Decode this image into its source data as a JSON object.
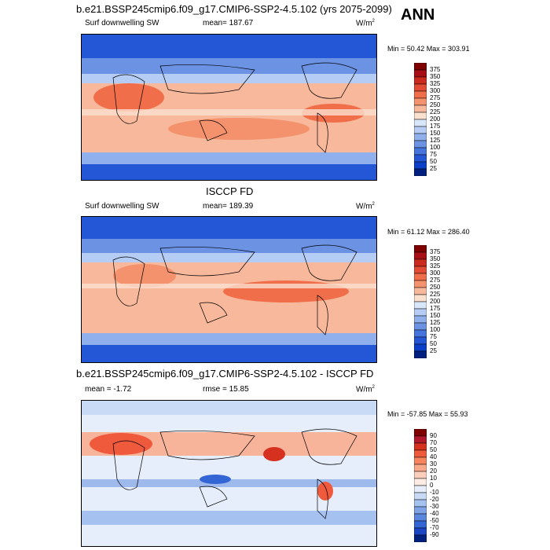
{
  "header": {
    "title": "b.e21.BSSP245cmip6.f09_g17.CMIP6-SSP2-4.5.102 (yrs 2075-2099)",
    "season": "ANN"
  },
  "panels": [
    {
      "id": "model",
      "title": "",
      "variable": "Surf downwelling SW",
      "stat": "mean= 187.67",
      "unit": "W/m",
      "unit_sup": "2",
      "minmax": "Min =  50.42 Max = 303.91",
      "levels": [
        "375",
        "350",
        "325",
        "300",
        "275",
        "250",
        "225",
        "200",
        "175",
        "150",
        "125",
        "100",
        "75",
        "50",
        "25"
      ]
    },
    {
      "id": "obs",
      "title": "ISCCP FD",
      "variable": "Surf downwelling SW",
      "stat": "mean= 189.39",
      "unit": "W/m",
      "unit_sup": "2",
      "minmax": "Min =  61.12 Max = 286.40",
      "levels": [
        "375",
        "350",
        "325",
        "300",
        "275",
        "250",
        "225",
        "200",
        "175",
        "150",
        "125",
        "100",
        "75",
        "50",
        "25"
      ]
    },
    {
      "id": "diff",
      "title": "b.e21.BSSP245cmip6.f09_g17.CMIP6-SSP2-4.5.102 - ISCCP FD",
      "variable": "mean =  -1.72",
      "stat": "rmse =  15.85",
      "unit": "W/m",
      "unit_sup": "2",
      "minmax": "Min = -57.85 Max =  55.93",
      "levels": [
        "90",
        "70",
        "50",
        "40",
        "30",
        "20",
        "10",
        "0",
        "-10",
        "-20",
        "-30",
        "-40",
        "-50",
        "-70",
        "-90"
      ]
    }
  ],
  "colors": {
    "abs_scale": [
      "#7f0000",
      "#a50f15",
      "#cb2a1f",
      "#e34a33",
      "#f06e4a",
      "#f4926d",
      "#f7b89c",
      "#fbe0cf",
      "#d8e6fa",
      "#b5cdf4",
      "#8fb0ec",
      "#6b92e3",
      "#4574dc",
      "#2457d6",
      "#0a3fc7",
      "#00207f"
    ],
    "diff_scale": [
      "#7f0000",
      "#b2182b",
      "#d6301f",
      "#ef5a3c",
      "#f6855f",
      "#f9a98a",
      "#fbcfbb",
      "#fdece3",
      "#e6eefb",
      "#c8daf5",
      "#a5c1ef",
      "#7fa3e6",
      "#5a86dd",
      "#3465d4",
      "#1a46c4",
      "#00207f"
    ]
  }
}
